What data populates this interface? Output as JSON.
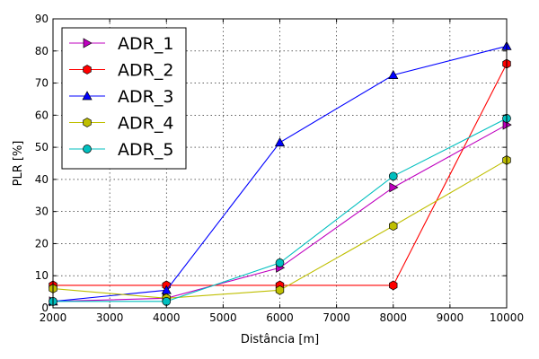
{
  "chart_data": {
    "type": "line",
    "xlabel": "Distância [m]",
    "ylabel": "PLR [%]",
    "xlim": [
      2000,
      10000
    ],
    "ylim": [
      0,
      90
    ],
    "xticks": [
      2000,
      3000,
      4000,
      5000,
      6000,
      7000,
      8000,
      9000,
      10000
    ],
    "yticks": [
      0,
      10,
      20,
      30,
      40,
      50,
      60,
      70,
      80,
      90
    ],
    "grid": true,
    "legend_position": "top-left",
    "series": [
      {
        "name": "ADR_1",
        "color": "#bf00bf",
        "marker": "triangle-right",
        "x": [
          2000,
          4000,
          6000,
          8000,
          10000
        ],
        "y": [
          2,
          3,
          12.5,
          37.5,
          57
        ]
      },
      {
        "name": "ADR_2",
        "color": "#ff0000",
        "marker": "hexagon",
        "x": [
          2000,
          4000,
          6000,
          8000,
          10000
        ],
        "y": [
          7,
          7,
          7,
          7,
          76
        ]
      },
      {
        "name": "ADR_3",
        "color": "#0000ff",
        "marker": "triangle-up",
        "x": [
          2000,
          4000,
          6000,
          8000,
          10000
        ],
        "y": [
          2,
          5.5,
          51.5,
          72.5,
          81.5
        ]
      },
      {
        "name": "ADR_4",
        "color": "#bfbf00",
        "marker": "hexagon",
        "x": [
          2000,
          4000,
          6000,
          8000,
          10000
        ],
        "y": [
          6,
          3,
          5.5,
          25.5,
          46
        ]
      },
      {
        "name": "ADR_5",
        "color": "#00bfbf",
        "marker": "circle",
        "x": [
          2000,
          4000,
          6000,
          8000,
          10000
        ],
        "y": [
          2,
          2,
          14,
          41,
          59
        ]
      }
    ]
  }
}
